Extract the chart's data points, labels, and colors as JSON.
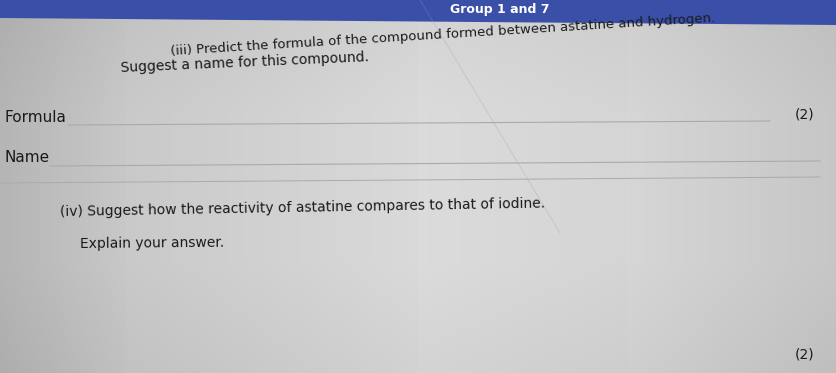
{
  "bg_color_left": "#c8c8c8",
  "bg_color_center": "#e8e8e8",
  "bg_color_right": "#b8b8b8",
  "header_bg": "#3a50a8",
  "header_text": "Group 1 and 7",
  "header_text_color": "#ffffff",
  "header_fontsize": 9,
  "title_line1": "(iii) Predict the formula of the compound formed between astatine and hydrogen.",
  "title_line2": "Suggest a name for this compound.",
  "title_fontsize": 10,
  "label_formula": "Formula",
  "label_name": "Name",
  "label_fontsize": 11,
  "marks_iii": "(2)",
  "marks_iv_text": "(iv) Suggest how the reactivity of astatine compares to that of iodine.",
  "marks_iv_sub": "Explain your answer.",
  "marks_iv": "(2)",
  "marks_fontsize": 10,
  "line_color": "#aaaaaa",
  "text_color": "#1a1a1a"
}
